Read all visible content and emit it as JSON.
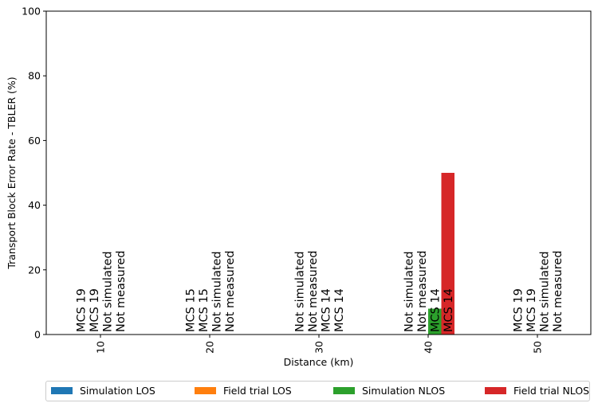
{
  "chart_data": {
    "type": "bar",
    "xlabel": "Distance (km)",
    "ylabel": "Transport Block Error Rate - TBLER (%)",
    "ylim": [
      0,
      100
    ],
    "yticks": [
      0,
      20,
      40,
      60,
      80,
      100
    ],
    "categories": [
      "10",
      "20",
      "30",
      "40",
      "50"
    ],
    "series": [
      {
        "name": "Simulation LOS",
        "color": "#1f77b4",
        "values": [
          0,
          0,
          null,
          null,
          0
        ]
      },
      {
        "name": "Field trial LOS",
        "color": "#ff7f0e",
        "values": [
          0,
          0,
          null,
          null,
          0
        ]
      },
      {
        "name": "Simulation NLOS",
        "color": "#2ca02c",
        "values": [
          null,
          null,
          0,
          8,
          null
        ]
      },
      {
        "name": "Field trial NLOS",
        "color": "#d62728",
        "values": [
          null,
          null,
          0,
          50,
          null
        ]
      }
    ],
    "annotations": [
      [
        "MCS 19",
        "MCS 19",
        "Not simulated",
        "Not measured"
      ],
      [
        "MCS 15",
        "MCS 15",
        "Not simulated",
        "Not measured"
      ],
      [
        "Not simulated",
        "Not measured",
        "MCS 14",
        "MCS 14"
      ],
      [
        "Not simulated",
        "Not measured",
        "MCS 14",
        "MCS 14"
      ],
      [
        "MCS 19",
        "MCS 19",
        "Not simulated",
        "Not measured"
      ]
    ],
    "grid": false,
    "legend_placement": "bottom"
  }
}
